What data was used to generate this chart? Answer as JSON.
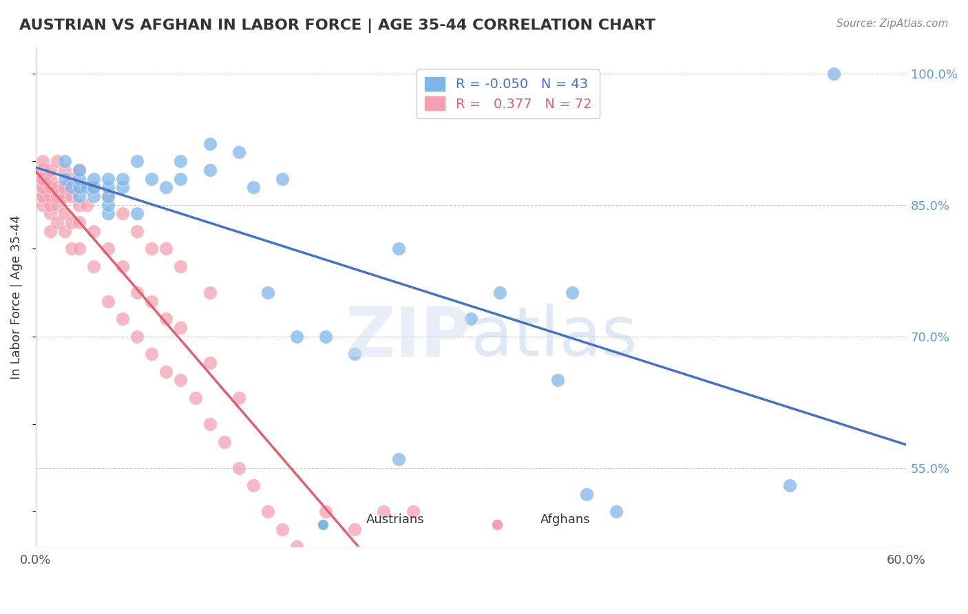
{
  "title": "AUSTRIAN VS AFGHAN IN LABOR FORCE | AGE 35-44 CORRELATION CHART",
  "source": "Source: ZipAtlas.com",
  "ylabel": "In Labor Force | Age 35-44",
  "ytick_labels": [
    "100.0%",
    "85.0%",
    "70.0%",
    "55.0%"
  ],
  "ytick_values": [
    1.0,
    0.85,
    0.7,
    0.55
  ],
  "xlim": [
    0.0,
    0.6
  ],
  "ylim": [
    0.46,
    1.03
  ],
  "r_austrians": -0.05,
  "n_austrians": 43,
  "r_afghans": 0.377,
  "n_afghans": 72,
  "color_austrians": "#7EB6E8",
  "color_afghans": "#F4A0B0",
  "color_line_austrians": "#4472C4",
  "color_line_afghans": "#E06070",
  "austrians_x": [
    0.02,
    0.02,
    0.025,
    0.03,
    0.03,
    0.03,
    0.03,
    0.035,
    0.04,
    0.04,
    0.04,
    0.05,
    0.05,
    0.05,
    0.05,
    0.05,
    0.06,
    0.06,
    0.07,
    0.07,
    0.08,
    0.09,
    0.1,
    0.1,
    0.12,
    0.12,
    0.14,
    0.15,
    0.16,
    0.17,
    0.18,
    0.2,
    0.22,
    0.25,
    0.25,
    0.3,
    0.32,
    0.36,
    0.37,
    0.38,
    0.4,
    0.52,
    0.55
  ],
  "austrians_y": [
    0.88,
    0.9,
    0.87,
    0.86,
    0.87,
    0.88,
    0.89,
    0.87,
    0.86,
    0.87,
    0.88,
    0.84,
    0.85,
    0.86,
    0.87,
    0.88,
    0.87,
    0.88,
    0.84,
    0.9,
    0.88,
    0.87,
    0.88,
    0.9,
    0.89,
    0.92,
    0.91,
    0.87,
    0.75,
    0.88,
    0.7,
    0.7,
    0.68,
    0.8,
    0.56,
    0.72,
    0.75,
    0.65,
    0.75,
    0.52,
    0.5,
    0.53,
    1.0
  ],
  "afghans_x": [
    0.005,
    0.005,
    0.005,
    0.005,
    0.005,
    0.005,
    0.005,
    0.005,
    0.005,
    0.01,
    0.01,
    0.01,
    0.01,
    0.01,
    0.01,
    0.01,
    0.015,
    0.015,
    0.015,
    0.015,
    0.015,
    0.02,
    0.02,
    0.02,
    0.02,
    0.02,
    0.025,
    0.025,
    0.025,
    0.025,
    0.03,
    0.03,
    0.03,
    0.03,
    0.03,
    0.035,
    0.04,
    0.04,
    0.04,
    0.05,
    0.05,
    0.05,
    0.06,
    0.06,
    0.06,
    0.07,
    0.07,
    0.07,
    0.08,
    0.08,
    0.08,
    0.09,
    0.09,
    0.09,
    0.1,
    0.1,
    0.1,
    0.11,
    0.12,
    0.12,
    0.12,
    0.13,
    0.14,
    0.14,
    0.15,
    0.16,
    0.17,
    0.18,
    0.2,
    0.22,
    0.24,
    0.26
  ],
  "afghans_y": [
    0.85,
    0.86,
    0.86,
    0.87,
    0.87,
    0.88,
    0.88,
    0.89,
    0.9,
    0.82,
    0.84,
    0.85,
    0.86,
    0.87,
    0.88,
    0.89,
    0.83,
    0.85,
    0.86,
    0.87,
    0.9,
    0.82,
    0.84,
    0.86,
    0.87,
    0.89,
    0.8,
    0.83,
    0.86,
    0.88,
    0.8,
    0.83,
    0.85,
    0.87,
    0.89,
    0.85,
    0.78,
    0.82,
    0.87,
    0.74,
    0.8,
    0.86,
    0.72,
    0.78,
    0.84,
    0.7,
    0.75,
    0.82,
    0.68,
    0.74,
    0.8,
    0.66,
    0.72,
    0.8,
    0.65,
    0.71,
    0.78,
    0.63,
    0.6,
    0.67,
    0.75,
    0.58,
    0.55,
    0.63,
    0.53,
    0.5,
    0.48,
    0.46,
    0.5,
    0.48,
    0.5,
    0.5
  ]
}
